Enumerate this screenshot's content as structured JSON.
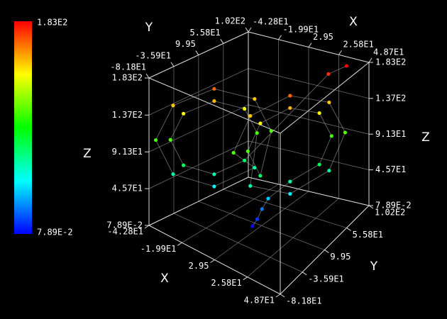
{
  "chart_data": {
    "type": "scatter3d",
    "xlabel": "X",
    "ylabel": "Y",
    "zlabel": "Z",
    "xlim": [
      -42.8,
      48.7
    ],
    "ylim": [
      -81.8,
      102
    ],
    "zlim": [
      0.0789,
      183
    ],
    "xticks": [
      {
        "value": -42.8,
        "label": "-4.28E1"
      },
      {
        "value": -19.9,
        "label": "-1.99E1"
      },
      2.95,
      {
        "value": 25.8,
        "label": "2.58E1"
      },
      {
        "value": 48.7,
        "label": "4.87E1"
      }
    ],
    "yticks": [
      {
        "value": -81.8,
        "label": "-8.18E1"
      },
      {
        "value": -35.9,
        "label": "-3.59E1"
      },
      9.95,
      {
        "value": 55.8,
        "label": "5.58E1"
      },
      {
        "value": 102,
        "label": "1.02E2"
      }
    ],
    "zticks": [
      {
        "value": 0.0789,
        "label": "7.89E-2"
      },
      {
        "value": 45.7,
        "label": "4.57E1"
      },
      {
        "value": 91.3,
        "label": "9.13E1"
      },
      {
        "value": 137,
        "label": "1.37E2"
      },
      {
        "value": 183,
        "label": "1.83E2"
      }
    ],
    "grid": true,
    "colormap": [
      "#0000ff",
      "#00ffff",
      "#00ff00",
      "#ffff00",
      "#ff0000"
    ],
    "series": [
      {
        "x": [
          0,
          2,
          4,
          7,
          20,
          31.1,
          35.8,
          31.1,
          20,
          8.9,
          4.3,
          8.9,
          1,
          -5.2,
          -20,
          -34.8,
          -41,
          -34.8,
          -20,
          -5.2,
          -1,
          5.2,
          20,
          34.8,
          41,
          34.8,
          20,
          5.2,
          -4.3,
          -8.9,
          -20,
          -31.1,
          -35.8,
          -31.1,
          -20,
          -8.9,
          30,
          38
        ],
        "y": [
          0,
          4,
          8,
          12,
          20,
          48.6,
          60.5,
          48.6,
          20,
          -8.6,
          -20.5,
          -8.6,
          34,
          18.2,
          -20,
          -58.2,
          -74,
          -58.2,
          -20,
          18.2,
          -34,
          -18.2,
          20,
          58.2,
          74,
          58.2,
          20,
          -18.2,
          20.5,
          8.6,
          -20,
          -48.6,
          -60.5,
          -48.6,
          -20,
          8.6,
          70,
          85
        ],
        "z": [
          2,
          10,
          22,
          35,
          60,
          73.2,
          105,
          136.8,
          150,
          136.8,
          105,
          73.2,
          105,
          147.4,
          165,
          147.4,
          105,
          62.6,
          45,
          62.6,
          105,
          147.4,
          165,
          147.4,
          105,
          62.6,
          45,
          62.6,
          105,
          136.8,
          150,
          136.8,
          105,
          73.2,
          60,
          73.2,
          175,
          182
        ]
      }
    ]
  }
}
